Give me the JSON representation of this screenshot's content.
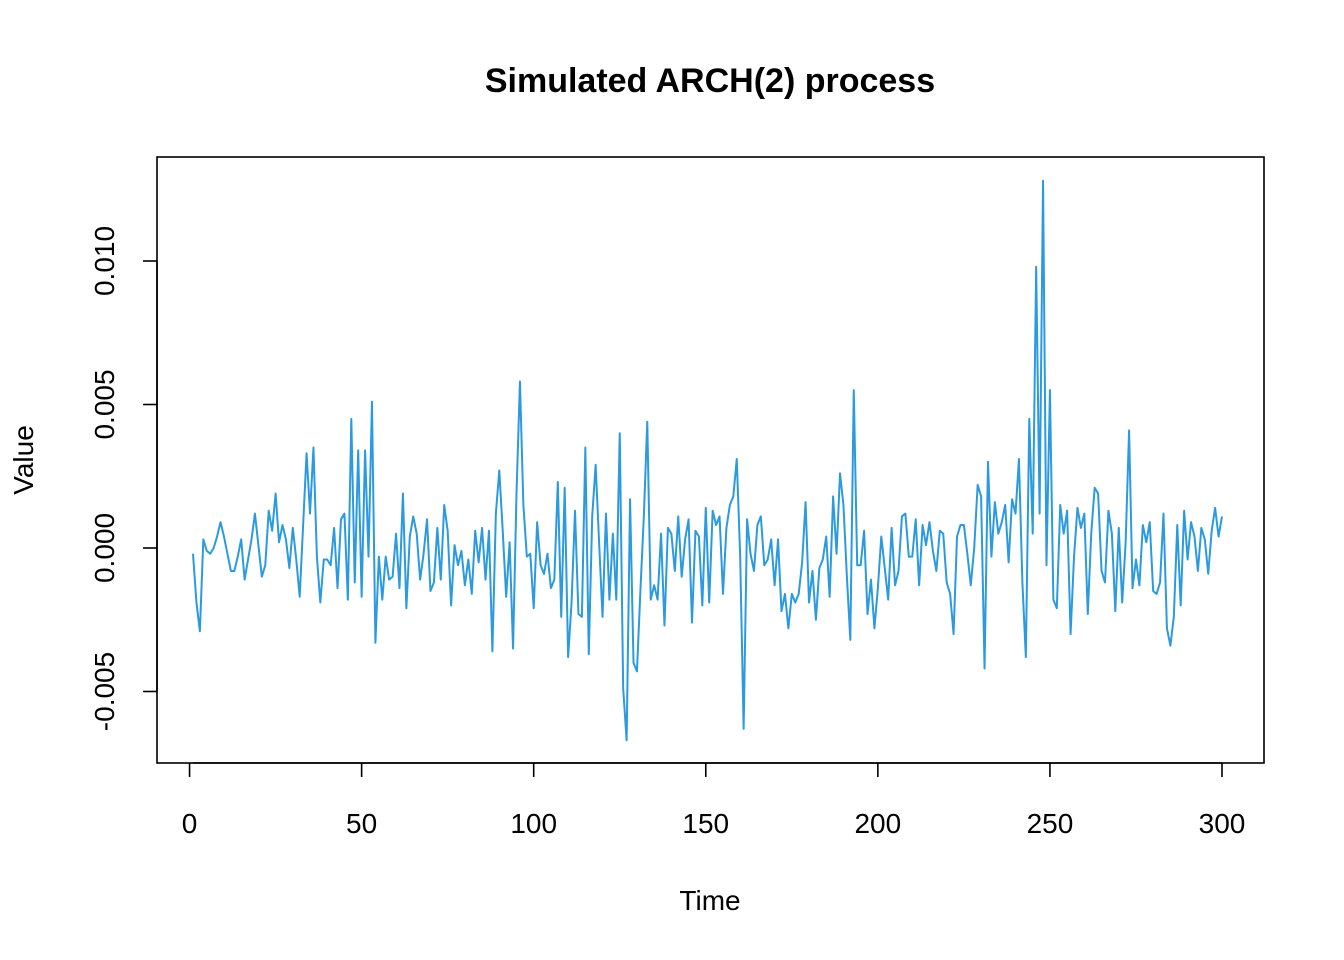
{
  "chart_data": {
    "type": "line",
    "title": "Simulated ARCH(2) process",
    "xlabel": "Time",
    "ylabel": "Value",
    "xlim": [
      1,
      300
    ],
    "ylim": [
      -0.0075,
      0.0135
    ],
    "xticks": [
      0,
      50,
      100,
      150,
      200,
      250,
      300
    ],
    "xtick_labels": [
      "0",
      "50",
      "100",
      "150",
      "200",
      "250",
      "300"
    ],
    "yticks": [
      -0.005,
      0.0,
      0.005,
      0.01
    ],
    "ytick_labels": [
      "-0.005",
      "0.000",
      "0.005",
      "0.010"
    ],
    "grid": false,
    "line_color": "#2b9ae0",
    "series": [
      {
        "x_start": 1,
        "x_step": 1,
        "values": [
          -0.0002,
          -0.0019,
          -0.0029,
          0.0003,
          -0.0001,
          -0.0002,
          0.0,
          0.0004,
          0.0009,
          0.0004,
          -0.0002,
          -0.0008,
          -0.0008,
          -0.0003,
          0.0003,
          -0.0011,
          -0.0004,
          0.0003,
          0.0012,
          0.0001,
          -0.001,
          -0.0006,
          0.0013,
          0.0006,
          0.0019,
          0.0002,
          0.0008,
          0.0003,
          -0.0007,
          0.0007,
          -0.0004,
          -0.0017,
          0.0008,
          0.0033,
          0.0012,
          0.0035,
          -0.0003,
          -0.0019,
          -0.0004,
          -0.0004,
          -0.0006,
          0.0007,
          -0.0014,
          0.001,
          0.0012,
          -0.0018,
          0.0045,
          -0.0012,
          0.0034,
          -0.0017,
          0.0034,
          -0.0003,
          0.0051,
          -0.0033,
          -0.0003,
          -0.0018,
          -0.0003,
          -0.0011,
          -0.001,
          0.0005,
          -0.0014,
          0.0019,
          -0.0021,
          0.0004,
          0.0011,
          0.0005,
          -0.0011,
          -0.0002,
          0.001,
          -0.0015,
          -0.0012,
          0.0007,
          -0.0011,
          0.0015,
          0.0006,
          -0.002,
          0.0001,
          -0.0006,
          -0.0001,
          -0.0013,
          -0.0004,
          -0.0016,
          0.0006,
          -0.0005,
          0.0007,
          -0.0011,
          0.0006,
          -0.0036,
          0.0012,
          0.0027,
          0.0006,
          -0.0017,
          0.0002,
          -0.0035,
          0.0019,
          0.0058,
          0.0015,
          -0.0003,
          -0.0002,
          -0.0021,
          0.0009,
          -0.0006,
          -0.0009,
          -0.0002,
          -0.0014,
          -0.0011,
          0.0023,
          -0.0024,
          0.0021,
          -0.0038,
          -0.0019,
          0.0013,
          -0.0023,
          -0.0024,
          0.0035,
          -0.0037,
          0.0011,
          0.0029,
          0.0002,
          -0.0024,
          0.0012,
          -0.0018,
          0.0005,
          -0.0018,
          0.004,
          -0.0049,
          -0.0067,
          0.0017,
          -0.004,
          -0.0043,
          -0.0015,
          0.0011,
          0.0044,
          -0.0018,
          -0.0013,
          -0.0018,
          0.0005,
          -0.0027,
          0.0007,
          0.0005,
          -0.0008,
          0.0011,
          -0.001,
          0.0003,
          0.001,
          -0.0026,
          0.0006,
          0.0004,
          -0.002,
          0.0014,
          -0.0019,
          0.0013,
          0.0008,
          0.0011,
          -0.0016,
          0.0007,
          0.0015,
          0.0018,
          0.0031,
          -0.0003,
          -0.0063,
          0.001,
          -0.0002,
          -0.0008,
          0.0008,
          0.0011,
          -0.0006,
          -0.0004,
          0.0003,
          -0.0013,
          0.0003,
          -0.0022,
          -0.0016,
          -0.0028,
          -0.0016,
          -0.0019,
          -0.0016,
          -0.0005,
          0.0016,
          -0.0019,
          -0.0008,
          -0.0025,
          -0.0007,
          -0.0004,
          0.0004,
          -0.0017,
          0.0018,
          -0.0002,
          0.0026,
          0.0015,
          -0.001,
          -0.0032,
          0.0055,
          -0.0006,
          -0.0006,
          0.0006,
          -0.0023,
          -0.0011,
          -0.0028,
          -0.0014,
          0.0004,
          -0.0007,
          -0.0018,
          0.0007,
          -0.0013,
          -0.0008,
          0.0011,
          0.0012,
          -0.0003,
          -0.0003,
          0.001,
          -0.0013,
          0.0008,
          0.0001,
          0.0009,
          -0.0001,
          -0.0008,
          0.0006,
          0.0005,
          -0.0012,
          -0.0016,
          -0.003,
          0.0004,
          0.0008,
          0.0008,
          -0.0002,
          -0.0013,
          0.0,
          0.0022,
          0.0018,
          -0.0042,
          0.003,
          -0.0003,
          0.0016,
          0.0005,
          0.0009,
          0.0015,
          -0.0005,
          0.0017,
          0.0012,
          0.0031,
          -0.0012,
          -0.0038,
          0.0045,
          0.0005,
          0.0098,
          0.0012,
          0.0128,
          -0.0006,
          0.0055,
          -0.0018,
          -0.0021,
          0.0015,
          0.0005,
          0.0013,
          -0.003,
          -0.0003,
          0.0014,
          0.0007,
          0.0012,
          -0.0023,
          0.0005,
          0.0021,
          0.0019,
          -0.0008,
          -0.0012,
          0.0013,
          0.0005,
          -0.0022,
          0.0007,
          -0.0019,
          0.0002,
          0.0041,
          -0.0014,
          -0.0004,
          -0.0013,
          0.0008,
          0.0002,
          0.0009,
          -0.0015,
          -0.0016,
          -0.0012,
          0.0012,
          -0.0028,
          -0.0034,
          -0.0024,
          0.0008,
          -0.002,
          0.0013,
          -0.0004,
          0.0009,
          0.0004,
          -0.0008,
          0.0007,
          0.0003,
          -0.0009,
          0.0006,
          0.0014,
          0.0004,
          0.0011
        ]
      }
    ]
  }
}
